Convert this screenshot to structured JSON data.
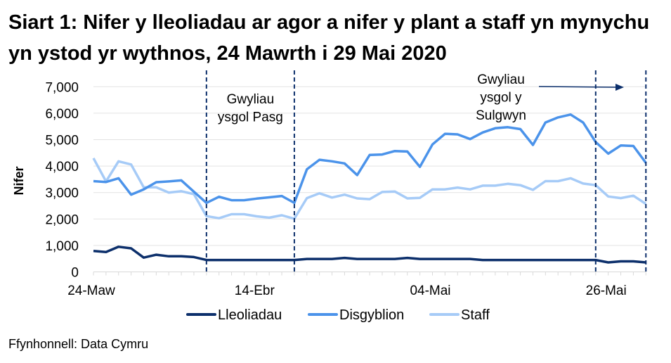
{
  "title": "Siart 1: Nifer y lleoliadau ar agor a nifer y plant a staff yn mynychu yn ystod yr wythnos, 24 Mawrth i 29 Mai 2020",
  "source": "Ffynhonnell: Data Cymru",
  "chart_data": {
    "type": "line",
    "title": "Siart 1: Nifer y lleoliadau ar agor a nifer y plant a staff yn mynychu yn ystod yr wythnos, 24 Mawrth i 29 Mai 2020",
    "xlabel": "",
    "ylabel": "Nifer",
    "ylim": [
      0,
      7000
    ],
    "yticks": [
      0,
      1000,
      2000,
      3000,
      4000,
      5000,
      6000,
      7000
    ],
    "ytick_labels": [
      "0",
      "1,000",
      "2,000",
      "3,000",
      "4,000",
      "5,000",
      "6,000",
      "7,000"
    ],
    "xtick_labels": [
      {
        "index": 0,
        "label": "24-Maw"
      },
      {
        "index": 13,
        "label": "14-Ebr"
      },
      {
        "index": 27,
        "label": "04-Mai"
      },
      {
        "index": 41,
        "label": "26-Mai"
      }
    ],
    "grid": "horizontal",
    "legend": "bottom",
    "x": [
      "2020-03-24",
      "2020-03-25",
      "2020-03-26",
      "2020-03-27",
      "2020-03-30",
      "2020-03-31",
      "2020-04-01",
      "2020-04-02",
      "2020-04-03",
      "2020-04-06",
      "2020-04-07",
      "2020-04-08",
      "2020-04-09",
      "2020-04-14",
      "2020-04-15",
      "2020-04-16",
      "2020-04-17",
      "2020-04-20",
      "2020-04-21",
      "2020-04-22",
      "2020-04-23",
      "2020-04-24",
      "2020-04-27",
      "2020-04-28",
      "2020-04-29",
      "2020-04-30",
      "2020-05-01",
      "2020-05-04",
      "2020-05-05",
      "2020-05-06",
      "2020-05-07",
      "2020-05-11",
      "2020-05-12",
      "2020-05-13",
      "2020-05-14",
      "2020-05-15",
      "2020-05-18",
      "2020-05-19",
      "2020-05-20",
      "2020-05-21",
      "2020-05-22",
      "2020-05-26",
      "2020-05-27",
      "2020-05-28",
      "2020-05-29"
    ],
    "series": [
      {
        "name": "Lleoliadau",
        "color": "#0c2f6b",
        "values": [
          790,
          750,
          950,
          890,
          540,
          650,
          590,
          590,
          560,
          450,
          450,
          450,
          450,
          450,
          450,
          450,
          450,
          490,
          490,
          490,
          530,
          490,
          490,
          490,
          490,
          530,
          490,
          490,
          490,
          490,
          490,
          450,
          450,
          450,
          450,
          450,
          450,
          450,
          450,
          450,
          450,
          360,
          400,
          400,
          360
        ]
      },
      {
        "name": "Disgyblion",
        "color": "#4b93ea",
        "values": [
          3430,
          3400,
          3540,
          2920,
          3120,
          3390,
          3420,
          3460,
          3030,
          2610,
          2840,
          2710,
          2710,
          2770,
          2820,
          2870,
          2610,
          3880,
          4240,
          4180,
          4100,
          3660,
          4420,
          4440,
          4570,
          4550,
          3970,
          4820,
          5220,
          5200,
          5020,
          5270,
          5430,
          5470,
          5400,
          4800,
          5650,
          5840,
          5950,
          5650,
          4910,
          4470,
          4780,
          4760,
          4120
        ]
      },
      {
        "name": "Staff",
        "color": "#a6cbf7",
        "values": [
          4300,
          3420,
          4180,
          4060,
          3200,
          3200,
          3000,
          3050,
          2940,
          2110,
          2030,
          2180,
          2180,
          2100,
          2050,
          2140,
          2010,
          2790,
          2970,
          2810,
          2920,
          2780,
          2750,
          3020,
          3040,
          2780,
          2800,
          3120,
          3120,
          3190,
          3120,
          3260,
          3260,
          3330,
          3280,
          3100,
          3430,
          3430,
          3540,
          3340,
          3280,
          2850,
          2790,
          2880,
          2570
        ]
      }
    ],
    "annotations": [
      {
        "lines": [
          "Gwyliau",
          "ysgol Pasg"
        ],
        "from": "2020-04-06",
        "to": "2020-04-17"
      },
      {
        "lines": [
          "Gwyliau",
          "ysgol y",
          "Sulgwyn"
        ],
        "from": "2020-05-22",
        "to": "2020-05-29",
        "arrow": "right"
      }
    ]
  }
}
